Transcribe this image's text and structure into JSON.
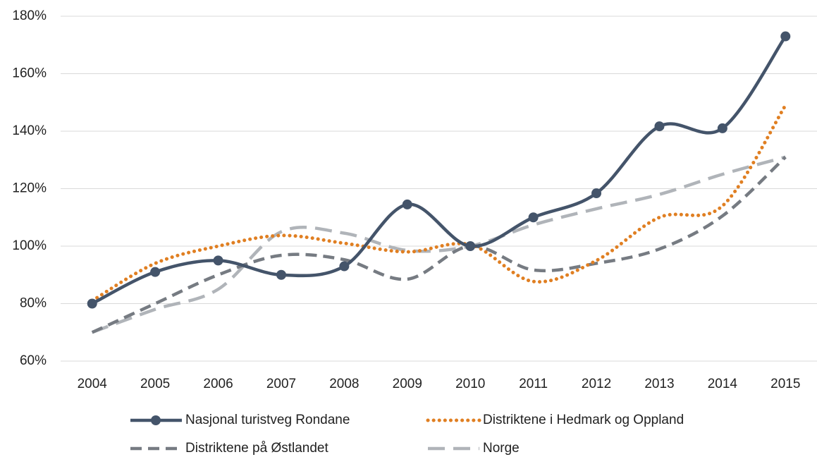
{
  "chart_data": {
    "type": "line",
    "smooth": true,
    "grid": true,
    "categories": [
      "2004",
      "2005",
      "2006",
      "2007",
      "2008",
      "2009",
      "2010",
      "2011",
      "2012",
      "2013",
      "2014",
      "2015"
    ],
    "ylim": [
      60,
      180
    ],
    "yticks": [
      {
        "value": 60,
        "label": "60%"
      },
      {
        "value": 80,
        "label": "80%"
      },
      {
        "value": 100,
        "label": "100%"
      },
      {
        "value": 120,
        "label": "120%"
      },
      {
        "value": 140,
        "label": "140%"
      },
      {
        "value": 160,
        "label": "160%"
      },
      {
        "value": 180,
        "label": "180%"
      }
    ],
    "legend": "bottom",
    "series": [
      {
        "name": "Nasjonal turistveg Rondane",
        "color": "#44546a",
        "dash": "solid",
        "marker": "circle",
        "values": [
          80,
          91,
          95,
          90,
          93,
          114.5,
          100,
          110,
          118.4,
          141.7,
          141,
          173
        ]
      },
      {
        "name": "Distriktene i Hedmark og Oppland",
        "color": "#e07f22",
        "dash": "dotted",
        "values": [
          81,
          94,
          100,
          103.7,
          101,
          98,
          100.5,
          87.7,
          95,
          110,
          114,
          149
        ]
      },
      {
        "name": "Distriktene på Østlandet",
        "color": "#767b82",
        "dash": "dashed",
        "values": [
          70,
          80,
          90,
          96.8,
          95.3,
          88.5,
          100,
          91.7,
          94,
          99,
          110.5,
          131
        ]
      },
      {
        "name": "Norge",
        "color": "#b0b4b9",
        "dash": "longdash",
        "values": [
          70,
          78,
          85,
          105,
          104.5,
          98.5,
          100,
          107.4,
          113,
          118,
          125,
          131
        ]
      }
    ]
  }
}
